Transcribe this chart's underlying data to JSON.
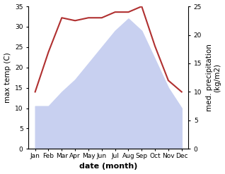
{
  "months": [
    "Jan",
    "Feb",
    "Mar",
    "Apr",
    "May",
    "Jun",
    "Jul",
    "Aug",
    "Sep",
    "Oct",
    "Nov",
    "Dec"
  ],
  "month_x": [
    0,
    1,
    2,
    3,
    4,
    5,
    6,
    7,
    8,
    9,
    10,
    11
  ],
  "temp": [
    10.5,
    10.5,
    14,
    17,
    21,
    25,
    29,
    32,
    29,
    22,
    15,
    10
  ],
  "precip": [
    10,
    17,
    23,
    22.5,
    23,
    23,
    24,
    24,
    25,
    18,
    12,
    10
  ],
  "temp_fill_color": "#c8d0f0",
  "precip_color": "#b03030",
  "ylabel_left": "max temp (C)",
  "ylabel_right": "med. precipitation\n(kg/m2)",
  "xlabel": "date (month)",
  "ylim_left": [
    0,
    35
  ],
  "ylim_right": [
    0,
    25
  ],
  "yticks_left": [
    0,
    5,
    10,
    15,
    20,
    25,
    30,
    35
  ],
  "yticks_right": [
    0,
    5,
    10,
    15,
    20,
    25
  ],
  "bg_color": "#ffffff",
  "label_fontsize": 7.5,
  "tick_fontsize": 6.5,
  "xlabel_fontsize": 8
}
